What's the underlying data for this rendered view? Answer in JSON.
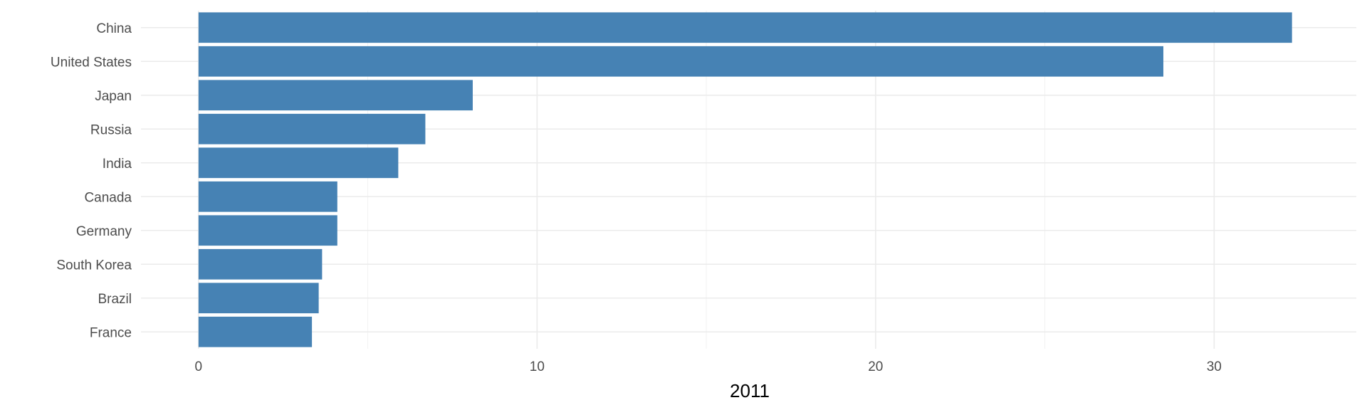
{
  "chart_data": {
    "type": "bar",
    "orientation": "horizontal",
    "categories": [
      "China",
      "United States",
      "Japan",
      "Russia",
      "India",
      "Canada",
      "Germany",
      "South Korea",
      "Brazil",
      "France"
    ],
    "values": [
      32.3,
      28.5,
      8.1,
      6.7,
      5.9,
      4.1,
      4.1,
      3.65,
      3.55,
      3.35
    ],
    "xlabel": "2011",
    "ylabel": "",
    "xlim": [
      -1.7,
      34.2
    ],
    "xticks": [
      0,
      10,
      20,
      30
    ],
    "bar_color": "#4682b4",
    "grid": true,
    "legend": "none"
  }
}
